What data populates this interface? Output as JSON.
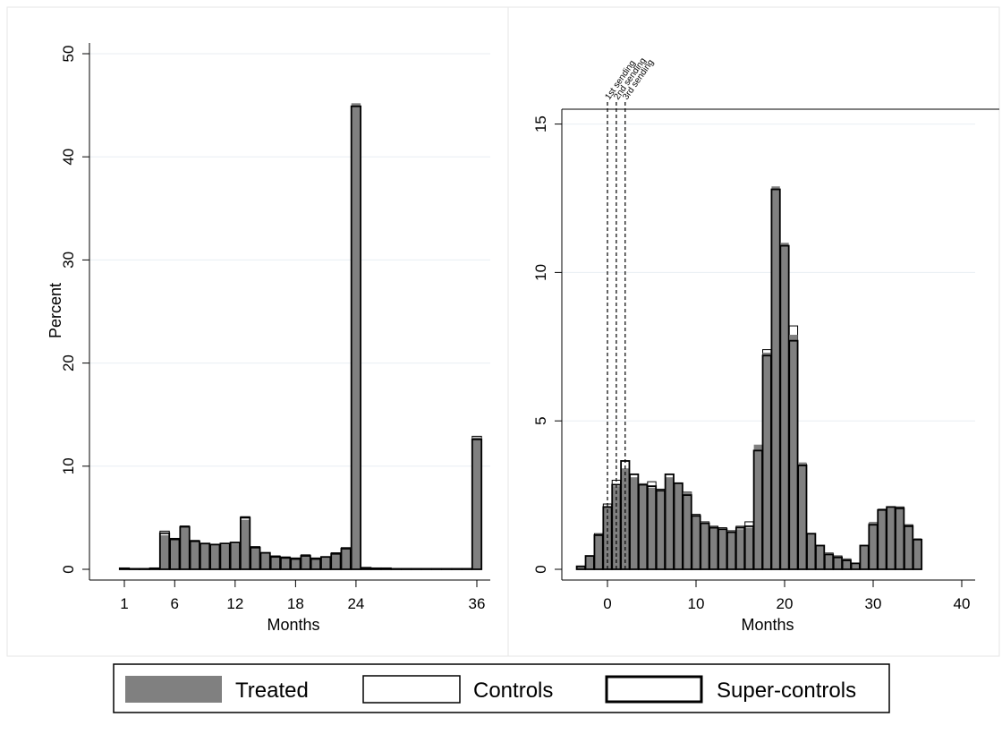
{
  "chart_data": [
    {
      "type": "bar",
      "xlabel": "Months",
      "ylabel": "Percent",
      "xlim": [
        -1,
        37
      ],
      "ylim": [
        0,
        50
      ],
      "xticks": [
        1,
        6,
        12,
        18,
        24,
        36
      ],
      "yticks": [
        0,
        10,
        20,
        30,
        40,
        50
      ],
      "grid": true,
      "x": [
        1,
        2,
        3,
        4,
        5,
        6,
        7,
        8,
        9,
        10,
        11,
        12,
        13,
        14,
        15,
        16,
        17,
        18,
        19,
        20,
        21,
        22,
        23,
        24,
        25,
        26,
        27,
        28,
        29,
        30,
        31,
        32,
        33,
        34,
        35,
        36
      ],
      "series": [
        {
          "name": "Treated",
          "values": [
            0.1,
            0.05,
            0.05,
            0.1,
            3.3,
            2.9,
            4.0,
            2.6,
            2.5,
            2.4,
            2.4,
            2.5,
            4.8,
            2.1,
            1.6,
            1.2,
            1.1,
            1.0,
            1.3,
            1.0,
            1.2,
            1.5,
            2.0,
            45.2,
            0.15,
            0.1,
            0.1,
            0.05,
            0.05,
            0.05,
            0.05,
            0.05,
            0.05,
            0.05,
            0.05,
            12.8
          ]
        },
        {
          "name": "Controls",
          "values": [
            0.1,
            0.05,
            0.05,
            0.1,
            3.7,
            3.0,
            4.2,
            2.8,
            2.5,
            2.4,
            2.5,
            2.6,
            5.1,
            2.2,
            1.6,
            1.3,
            1.2,
            1.1,
            1.4,
            1.1,
            1.2,
            1.6,
            2.1,
            44.8,
            0.15,
            0.1,
            0.1,
            0.05,
            0.05,
            0.05,
            0.05,
            0.05,
            0.05,
            0.05,
            0.05,
            12.9
          ]
        },
        {
          "name": "Super-controls",
          "values": [
            0.1,
            0.05,
            0.05,
            0.1,
            3.5,
            2.9,
            4.1,
            2.7,
            2.5,
            2.4,
            2.5,
            2.6,
            5.0,
            2.1,
            1.6,
            1.2,
            1.1,
            1.0,
            1.3,
            1.0,
            1.2,
            1.5,
            2.0,
            44.9,
            0.15,
            0.1,
            0.1,
            0.05,
            0.05,
            0.05,
            0.05,
            0.05,
            0.05,
            0.05,
            0.05,
            12.6
          ]
        }
      ]
    },
    {
      "type": "bar",
      "xlabel": "Months",
      "ylabel": "",
      "xlim": [
        -5,
        41
      ],
      "ylim": [
        0,
        15.5
      ],
      "xticks": [
        0,
        10,
        20,
        30,
        40
      ],
      "yticks": [
        0,
        5,
        10,
        15
      ],
      "grid": true,
      "x": [
        -3,
        -2,
        -1,
        0,
        1,
        2,
        3,
        4,
        5,
        6,
        7,
        8,
        9,
        10,
        11,
        12,
        13,
        14,
        15,
        16,
        17,
        18,
        19,
        20,
        21,
        22,
        23,
        24,
        25,
        26,
        27,
        28,
        29,
        30,
        31,
        32,
        33,
        34,
        35
      ],
      "series": [
        {
          "name": "Treated",
          "values": [
            0.1,
            0.45,
            1.15,
            2.1,
            2.8,
            3.4,
            3.1,
            2.9,
            2.75,
            2.65,
            3.1,
            2.9,
            2.6,
            1.8,
            1.6,
            1.4,
            1.35,
            1.3,
            1.35,
            1.4,
            4.2,
            7.3,
            12.9,
            11.0,
            7.9,
            3.6,
            1.2,
            0.8,
            0.55,
            0.4,
            0.35,
            0.2,
            0.8,
            1.6,
            2.05,
            2.1,
            2.05,
            1.45,
            1.05
          ]
        },
        {
          "name": "Controls",
          "values": [
            0.1,
            0.4,
            1.2,
            2.2,
            3.0,
            3.2,
            3.2,
            2.85,
            2.95,
            2.7,
            3.2,
            2.9,
            2.6,
            1.85,
            1.6,
            1.45,
            1.4,
            1.3,
            1.45,
            1.6,
            4.0,
            7.4,
            12.7,
            10.8,
            8.2,
            3.55,
            1.2,
            0.8,
            0.55,
            0.45,
            0.35,
            0.2,
            0.8,
            1.55,
            2.0,
            2.1,
            2.1,
            1.5,
            1.0
          ]
        },
        {
          "name": "Super-controls",
          "values": [
            0.1,
            0.45,
            1.15,
            2.1,
            2.85,
            3.65,
            3.2,
            2.85,
            2.8,
            2.65,
            3.2,
            2.9,
            2.5,
            1.8,
            1.55,
            1.4,
            1.35,
            1.25,
            1.4,
            1.45,
            4.0,
            7.2,
            12.8,
            10.9,
            7.7,
            3.5,
            1.2,
            0.8,
            0.5,
            0.4,
            0.3,
            0.2,
            0.8,
            1.5,
            2.0,
            2.1,
            2.05,
            1.45,
            1.0
          ]
        }
      ],
      "annotations": [
        {
          "x": 0,
          "label": "1st sending"
        },
        {
          "x": 1,
          "label": "2nd sending"
        },
        {
          "x": 2,
          "label": "3rd sending"
        }
      ]
    }
  ],
  "legend": {
    "placement": "bottom",
    "items": [
      {
        "label": "Treated",
        "fill": "#808080",
        "stroke": "none"
      },
      {
        "label": "Controls",
        "fill": "#ffffff",
        "stroke": "#000000"
      },
      {
        "label": "Super-controls",
        "fill": "none",
        "stroke": "#000000"
      }
    ]
  },
  "colors": {
    "treated_fill": "#808080",
    "treated_top": "#6e6e6e",
    "gridline": "#e8eef2",
    "panel_border": "#e6e6e6"
  }
}
